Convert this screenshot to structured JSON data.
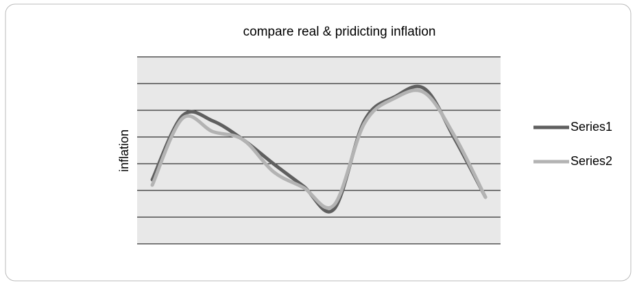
{
  "chart_data": {
    "type": "line",
    "title": "compare real & pridicting inflation",
    "y_label": "inflation",
    "categories": [
      null,
      null,
      null,
      null,
      null,
      null,
      null,
      null,
      null,
      null,
      null,
      null
    ],
    "series": [
      {
        "name": "Series1",
        "color": "#5f5f5f",
        "values": [
          2.4,
          4.8,
          4.6,
          3.9,
          3.0,
          2.15,
          1.3,
          4.6,
          5.5,
          5.8,
          3.9,
          1.75
        ]
      },
      {
        "name": "Series2",
        "color": "#b3b3b3",
        "values": [
          2.2,
          4.7,
          4.2,
          3.9,
          2.7,
          2.1,
          1.45,
          4.5,
          5.45,
          5.65,
          4.0,
          1.75
        ]
      }
    ],
    "ylim": [
      0,
      7
    ],
    "yticks": [
      0,
      1,
      2,
      3,
      4,
      5,
      6,
      7
    ],
    "grid": true,
    "smooth": true,
    "legend": "right"
  }
}
